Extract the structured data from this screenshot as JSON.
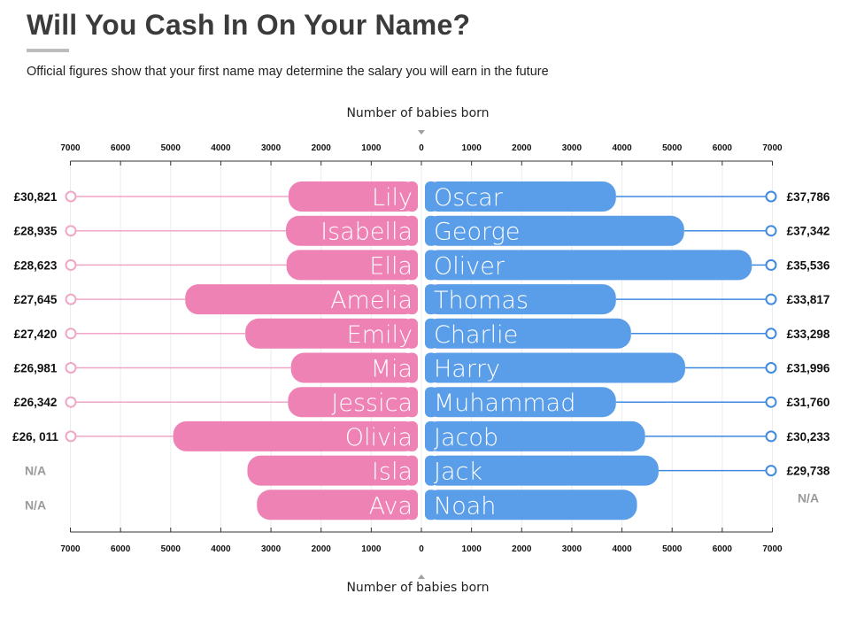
{
  "header": {
    "title": "Will You Cash In On Your Name?",
    "subtitle": "Official figures show that your first name may determine the salary you will earn in the future"
  },
  "colors": {
    "girls": "#ee82b4",
    "girls_line": "#f0a6c6",
    "boys": "#5a9de8",
    "boys_line": "#3f8ae0",
    "na_text": "#9a9a9a"
  },
  "chart_data": {
    "type": "bar",
    "xlabel_top": "Number of babies born",
    "xlabel_bottom": "Number of babies born",
    "xlim": [
      0,
      7000
    ],
    "ticks": [
      7000,
      6000,
      5000,
      4000,
      3000,
      2000,
      1000,
      0,
      1000,
      2000,
      3000,
      4000,
      5000,
      6000,
      7000
    ],
    "series": [
      {
        "categories": [
          "Lily",
          "Isabella",
          "Ella",
          "Amelia",
          "Emily",
          "Mia",
          "Jessica",
          "Olivia",
          "Isla",
          "Ava"
        ],
        "babies": [
          2650,
          2700,
          2690,
          4710,
          3510,
          2600,
          2660,
          4950,
          3470,
          3280
        ],
        "salaries": [
          "£30,821",
          "£28,935",
          "£28,623",
          "£27,645",
          "£27,420",
          "£26,981",
          "£26,342",
          "£26, 011",
          "N/A",
          "N/A"
        ]
      },
      {
        "categories": [
          "Oscar",
          "George",
          "Oliver",
          "Thomas",
          "Charlie",
          "Harry",
          "Muhammad",
          "Jacob",
          "Jack",
          "Noah"
        ],
        "babies": [
          3880,
          5240,
          6590,
          3880,
          4180,
          5260,
          3880,
          4460,
          4730,
          4300
        ],
        "salaries": [
          "£37,786",
          "£37,342",
          "£35,536",
          "£33,817",
          "£33,298",
          "£31,996",
          "£31,760",
          "£30,233",
          "£29,738",
          "N/A"
        ]
      }
    ]
  }
}
